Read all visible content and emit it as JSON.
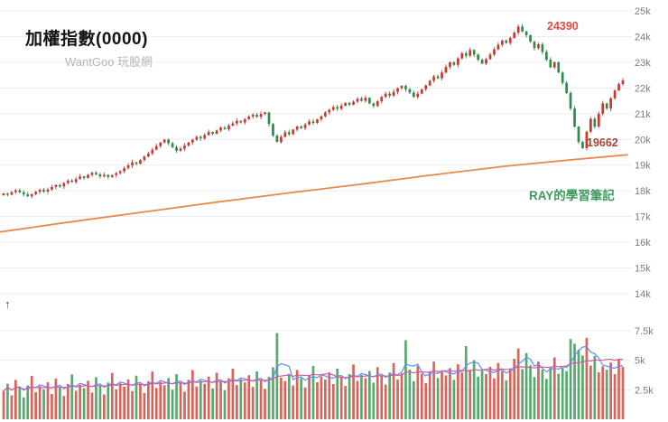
{
  "pane_control": {
    "arrow": "↑"
  },
  "chart_data": [
    {
      "type": "candlestick",
      "title": "加權指數(0000)",
      "watermark": "WantGoo 玩股網",
      "ylim": [
        14000,
        25000
      ],
      "y_tick_labels": [
        "25k",
        "24k",
        "23k",
        "22k",
        "21k",
        "20k",
        "19k",
        "18k",
        "17k",
        "16k",
        "15k",
        "14k"
      ],
      "y_tick_values": [
        25000,
        24000,
        23000,
        22000,
        21000,
        20000,
        19000,
        18000,
        17000,
        16000,
        15000,
        14000
      ],
      "up_color": "#c9382f",
      "down_color": "#2e8b4a",
      "ma_color": "#e8894e",
      "closes": [
        17900,
        17850,
        17950,
        18020,
        17940,
        17860,
        17790,
        17870,
        17960,
        18040,
        17970,
        18050,
        18150,
        18230,
        18170,
        18300,
        18400,
        18340,
        18460,
        18560,
        18500,
        18620,
        18700,
        18640,
        18560,
        18620,
        18540,
        18610,
        18690,
        18760,
        18880,
        18990,
        19110,
        19050,
        19200,
        19330,
        19450,
        19600,
        19740,
        19880,
        19990,
        19850,
        19700,
        19560,
        19640,
        19760,
        19880,
        19990,
        20100,
        20040,
        20170,
        20290,
        20220,
        20350,
        20460,
        20400,
        20540,
        20620,
        20720,
        20660,
        20790,
        20890,
        20960,
        20880,
        20990,
        21050,
        20600,
        20150,
        19900,
        20100,
        20280,
        20200,
        20380,
        20500,
        20440,
        20580,
        20700,
        20640,
        20780,
        20900,
        21050,
        21150,
        21260,
        21190,
        21310,
        21420,
        21350,
        21470,
        21580,
        21500,
        21620,
        21400,
        21300,
        21480,
        21650,
        21780,
        21700,
        21850,
        21990,
        22080,
        21950,
        21820,
        21650,
        21780,
        21950,
        22100,
        22280,
        22450,
        22380,
        22600,
        22820,
        23000,
        22900,
        23150,
        23350,
        23250,
        23480,
        23300,
        23100,
        22950,
        23120,
        23300,
        23500,
        23680,
        23850,
        23750,
        23950,
        24150,
        24390,
        24200,
        24050,
        23800,
        23550,
        23700,
        23400,
        23100,
        22800,
        23000,
        22600,
        22200,
        21800,
        21200,
        20500,
        19900,
        19662,
        20300,
        20800,
        20500,
        21000,
        21400,
        21200,
        21600,
        21900,
        22150,
        22300
      ],
      "ma_points": [
        [
          0,
          16400
        ],
        [
          80,
          16800
        ],
        [
          160,
          17180
        ],
        [
          240,
          17560
        ],
        [
          320,
          17920
        ],
        [
          400,
          18260
        ],
        [
          480,
          18620
        ],
        [
          560,
          18960
        ],
        [
          640,
          19230
        ],
        [
          695,
          19400
        ]
      ],
      "annotations": {
        "peak": {
          "text": "24390",
          "color": "#e8483f"
        },
        "trough": {
          "text": "19662",
          "color": "#9e4536"
        },
        "note": {
          "text": "RAY的學習筆記",
          "color": "#3a9a5c"
        }
      }
    },
    {
      "type": "bar",
      "name": "volume",
      "ylim": [
        0,
        8150
      ],
      "y_tick_labels": [
        "7.5k",
        "5k",
        "2.5k"
      ],
      "y_tick_values": [
        7500,
        5000,
        2500
      ],
      "up_color": "#cf4a3f",
      "down_color": "#3a9a55",
      "ma_short": {
        "period": 4,
        "color": "#5b8ff9"
      },
      "ma_long": {
        "period": 15,
        "color": "#d75b9e"
      },
      "values": [
        2400,
        3012,
        2024,
        3336,
        2648,
        1860,
        2872,
        3684,
        2296,
        2808,
        2520,
        3132,
        2144,
        3456,
        2768,
        1980,
        2992,
        3804,
        2416,
        2928,
        2640,
        3252,
        2264,
        3576,
        2888,
        2100,
        3112,
        3924,
        2536,
        3048,
        2760,
        3372,
        2384,
        3696,
        3008,
        2220,
        3232,
        4044,
        2656,
        3168,
        2880,
        3492,
        2504,
        3816,
        3128,
        2340,
        3352,
        4164,
        2776,
        3288,
        3000,
        3612,
        2624,
        3936,
        3248,
        2460,
        3472,
        4284,
        2896,
        3408,
        3120,
        3732,
        2744,
        4056,
        3368,
        2580,
        3592,
        4404,
        7300,
        3528,
        3240,
        3852,
        2864,
        4176,
        3488,
        2700,
        3712,
        4524,
        3136,
        3648,
        3360,
        3972,
        2984,
        4296,
        3608,
        2820,
        3832,
        4644,
        3256,
        3768,
        3480,
        4092,
        3104,
        4416,
        3728,
        2940,
        3952,
        4764,
        3376,
        3888,
        6700,
        4212,
        3224,
        4536,
        3848,
        3060,
        4072,
        4884,
        3496,
        4008,
        3720,
        4332,
        3344,
        4656,
        3968,
        6200,
        4192,
        5004,
        3616,
        4128,
        3840,
        4452,
        3464,
        4776,
        4088,
        3300,
        4312,
        5124,
        6000,
        4248,
        5600,
        4572,
        3584,
        4896,
        4208,
        3420,
        4432,
        5244,
        3856,
        4368,
        4080,
        6800,
        6400,
        5900,
        5400,
        6900,
        4552,
        5364,
        3976,
        4488,
        4200,
        4812,
        3824,
        5136,
        4448
      ]
    }
  ]
}
